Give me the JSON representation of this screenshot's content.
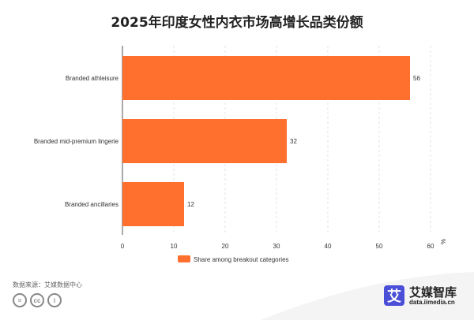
{
  "chart_data": {
    "type": "bar",
    "orientation": "horizontal",
    "title": "2025年印度女性内衣市场高增长品类份额",
    "categories": [
      "Branded athleisure",
      "Branded mid-premium lingerie",
      "Branded ancillaries"
    ],
    "values": [
      56,
      32,
      12
    ],
    "xlabel": "%",
    "xlim": [
      0,
      60
    ],
    "xticks": [
      0,
      10,
      20,
      30,
      40,
      50,
      60
    ],
    "legend": [
      "Share among breakout categories"
    ],
    "legend_position": "bottom",
    "color": "#ff6f2e",
    "grid": true
  },
  "footer": {
    "source": "数据来源：艾媒数据中心",
    "cc_icons": [
      "=",
      "cc",
      "i"
    ],
    "logo_mark": "艾",
    "logo_name": "艾媒智库",
    "logo_url": "data.iimedia.cn"
  }
}
